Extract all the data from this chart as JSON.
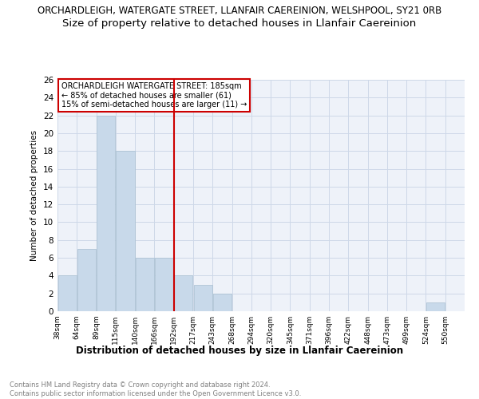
{
  "title": "ORCHARDLEIGH, WATERGATE STREET, LLANFAIR CAEREINION, WELSHPOOL, SY21 0RB",
  "subtitle": "Size of property relative to detached houses in Llanfair Caereinion",
  "xlabel": "Distribution of detached houses by size in Llanfair Caereinion",
  "ylabel": "Number of detached properties",
  "footnote1": "Contains HM Land Registry data © Crown copyright and database right 2024.",
  "footnote2": "Contains public sector information licensed under the Open Government Licence v3.0.",
  "bins": [
    "38sqm",
    "64sqm",
    "89sqm",
    "115sqm",
    "140sqm",
    "166sqm",
    "192sqm",
    "217sqm",
    "243sqm",
    "268sqm",
    "294sqm",
    "320sqm",
    "345sqm",
    "371sqm",
    "396sqm",
    "422sqm",
    "448sqm",
    "473sqm",
    "499sqm",
    "524sqm",
    "550sqm"
  ],
  "counts": [
    4,
    7,
    22,
    18,
    6,
    6,
    4,
    3,
    2,
    0,
    0,
    0,
    0,
    0,
    0,
    0,
    0,
    0,
    0,
    1,
    0
  ],
  "bar_color": "#c8d9ea",
  "bar_edge_color": "#a8bfd0",
  "vline_color": "#cc0000",
  "annotation_text": "ORCHARDLEIGH WATERGATE STREET: 185sqm\n← 85% of detached houses are smaller (61)\n15% of semi-detached houses are larger (11) →",
  "annotation_box_edge": "#cc0000",
  "ylim": [
    0,
    26
  ],
  "yticks": [
    0,
    2,
    4,
    6,
    8,
    10,
    12,
    14,
    16,
    18,
    20,
    22,
    24,
    26
  ],
  "grid_color": "#cdd8e8",
  "bg_color": "#eef2f9",
  "title_fontsize": 8.5,
  "subtitle_fontsize": 9.5
}
